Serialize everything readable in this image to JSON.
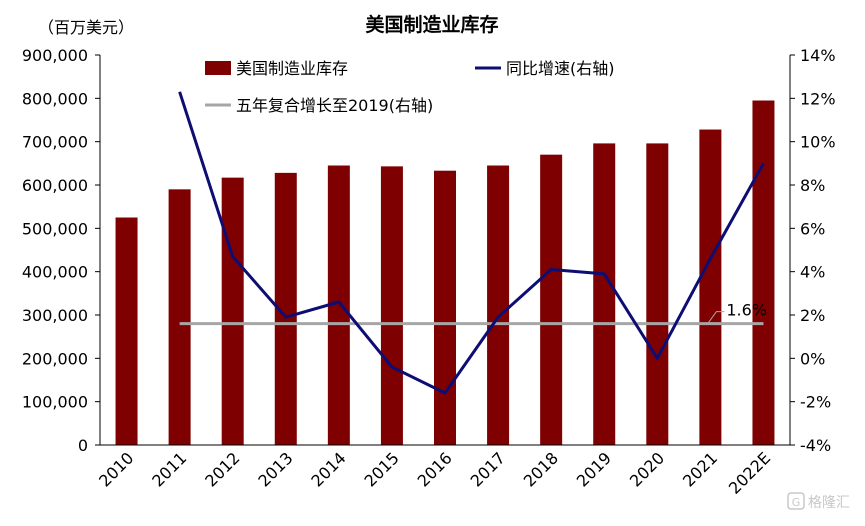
{
  "chart_data": {
    "type": "bar",
    "title": "美国制造业库存",
    "left_axis_unit": "（百万美元）",
    "categories": [
      "2010",
      "2011",
      "2012",
      "2013",
      "2014",
      "2015",
      "2016",
      "2017",
      "2018",
      "2019",
      "2020",
      "2021",
      "2022E"
    ],
    "bar_series": {
      "name": "美国制造业库存",
      "color": "#7f0000",
      "values": [
        525000,
        590000,
        617000,
        628000,
        645000,
        643000,
        633000,
        645000,
        670000,
        696000,
        696000,
        728000,
        795000
      ]
    },
    "line_series": {
      "name": "同比增速(右轴)",
      "color": "#0d0d73",
      "values": [
        null,
        12.3,
        4.7,
        1.9,
        2.6,
        -0.4,
        -1.6,
        1.9,
        4.1,
        3.9,
        0.0,
        4.6,
        9.0
      ]
    },
    "reference_line": {
      "name": "五年复合增长至2019(右轴)",
      "color": "#a6a6a6",
      "value": 1.6,
      "label": "1.6%"
    },
    "left_axis": {
      "min": 0,
      "max": 900000,
      "step": 100000,
      "tick_labels": [
        "0",
        "100,000",
        "200,000",
        "300,000",
        "400,000",
        "500,000",
        "600,000",
        "700,000",
        "800,000",
        "900,000"
      ]
    },
    "right_axis": {
      "min": -4,
      "max": 14,
      "step": 2,
      "tick_labels": [
        "-4%",
        "-2%",
        "0%",
        "2%",
        "4%",
        "6%",
        "8%",
        "10%",
        "12%",
        "14%"
      ]
    },
    "legend_placement": "top"
  },
  "watermark": "格隆汇"
}
